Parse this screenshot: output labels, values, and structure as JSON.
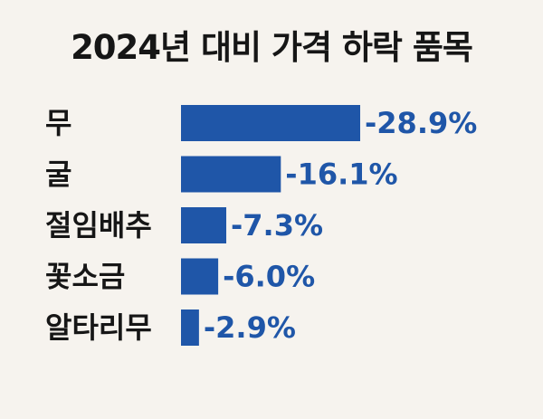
{
  "chart_data": {
    "type": "bar",
    "orientation": "horizontal",
    "title": "2024년 대비 가격 하락 품목",
    "categories": [
      "무",
      "굴",
      "절임배추",
      "꽃소금",
      "알타리무"
    ],
    "values": [
      -28.9,
      -16.1,
      -7.3,
      -6.0,
      -2.9
    ],
    "value_labels": [
      "-28.9%",
      "-16.1%",
      "-7.3%",
      "-6.0%",
      "-2.9%"
    ],
    "unit": "%",
    "grid": false,
    "legend": "none",
    "bar_color": "#1f56a8",
    "label_color": "#1f56a8",
    "background": "#f6f3ee"
  }
}
